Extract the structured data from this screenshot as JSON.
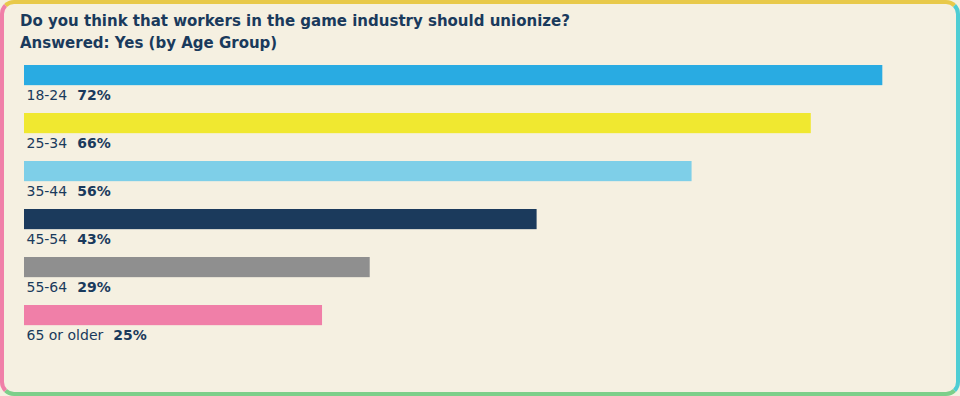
{
  "chart_data": {
    "type": "bar",
    "orientation": "horizontal",
    "title": "Do you think that workers in the game industry should unionize?",
    "subtitle": "Answered: Yes (by Age Group)",
    "categories": [
      "18-24",
      "25-34",
      "35-44",
      "45-54",
      "55-64",
      "65 or older"
    ],
    "values": [
      72,
      66,
      56,
      43,
      29,
      25
    ],
    "value_labels": [
      "72%",
      "66%",
      "56%",
      "43%",
      "29%",
      "25%"
    ],
    "colors": [
      "#29abe2",
      "#f0e830",
      "#7ecfe8",
      "#1b3a5c",
      "#8f8f8f",
      "#f07fa8"
    ],
    "xlim": [
      0,
      76
    ],
    "data_labels": true,
    "tick_labels": false,
    "grid": false
  }
}
